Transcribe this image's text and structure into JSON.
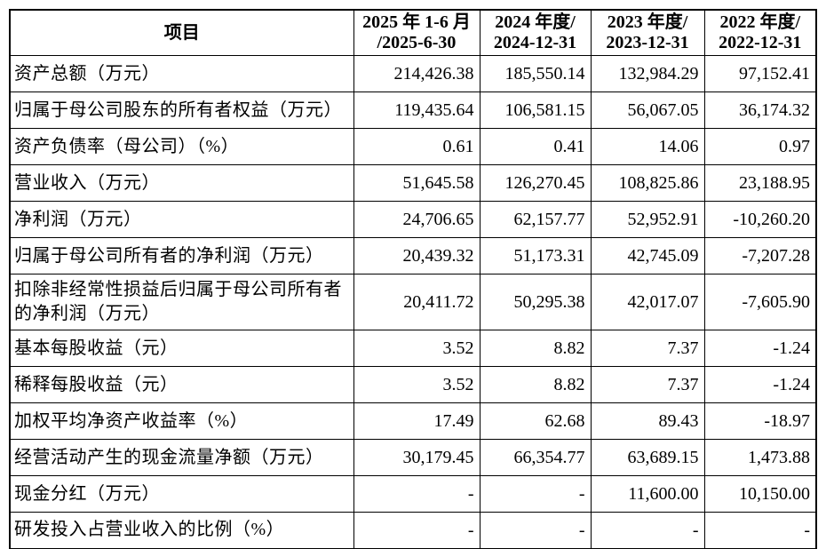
{
  "table": {
    "header": {
      "item_label": "项目",
      "periods": [
        {
          "line1": "2025 年 1-6 月",
          "line2": "/2025-6-30"
        },
        {
          "line1": "2024 年度/",
          "line2": "2024-12-31"
        },
        {
          "line1": "2023 年度/",
          "line2": "2023-12-31"
        },
        {
          "line1": "2022 年度/",
          "line2": "2022-12-31"
        }
      ]
    },
    "rows": [
      {
        "label": "资产总额（万元）",
        "values": [
          "214,426.38",
          "185,550.14",
          "132,984.29",
          "97,152.41"
        ]
      },
      {
        "label": "归属于母公司股东的所有者权益（万元）",
        "values": [
          "119,435.64",
          "106,581.15",
          "56,067.05",
          "36,174.32"
        ]
      },
      {
        "label": "资产负债率（母公司）（%）",
        "values": [
          "0.61",
          "0.41",
          "14.06",
          "0.97"
        ]
      },
      {
        "label": "营业收入（万元）",
        "values": [
          "51,645.58",
          "126,270.45",
          "108,825.86",
          "23,188.95"
        ]
      },
      {
        "label": "净利润（万元）",
        "values": [
          "24,706.65",
          "62,157.77",
          "52,952.91",
          "-10,260.20"
        ]
      },
      {
        "label": "归属于母公司所有者的净利润（万元）",
        "values": [
          "20,439.32",
          "51,173.31",
          "42,745.09",
          "-7,207.28"
        ]
      },
      {
        "label": "扣除非经常性损益后归属于母公司所有者的净利润（万元）",
        "values": [
          "20,411.72",
          "50,295.38",
          "42,017.07",
          "-7,605.90"
        ]
      },
      {
        "label": "基本每股收益（元）",
        "values": [
          "3.52",
          "8.82",
          "7.37",
          "-1.24"
        ]
      },
      {
        "label": "稀释每股收益（元）",
        "values": [
          "3.52",
          "8.82",
          "7.37",
          "-1.24"
        ]
      },
      {
        "label": "加权平均净资产收益率（%）",
        "values": [
          "17.49",
          "62.68",
          "89.43",
          "-18.97"
        ]
      },
      {
        "label": "经营活动产生的现金流量净额（万元）",
        "values": [
          "30,179.45",
          "66,354.77",
          "63,689.15",
          "1,473.88"
        ]
      },
      {
        "label": "现金分红（万元）",
        "values": [
          "-",
          "-",
          "11,600.00",
          "10,150.00"
        ]
      },
      {
        "label": "研发投入占营业收入的比例（%）",
        "values": [
          "-",
          "-",
          "-",
          "-"
        ]
      }
    ],
    "colors": {
      "border": "#000000",
      "text": "#000000",
      "background": "#ffffff"
    }
  }
}
